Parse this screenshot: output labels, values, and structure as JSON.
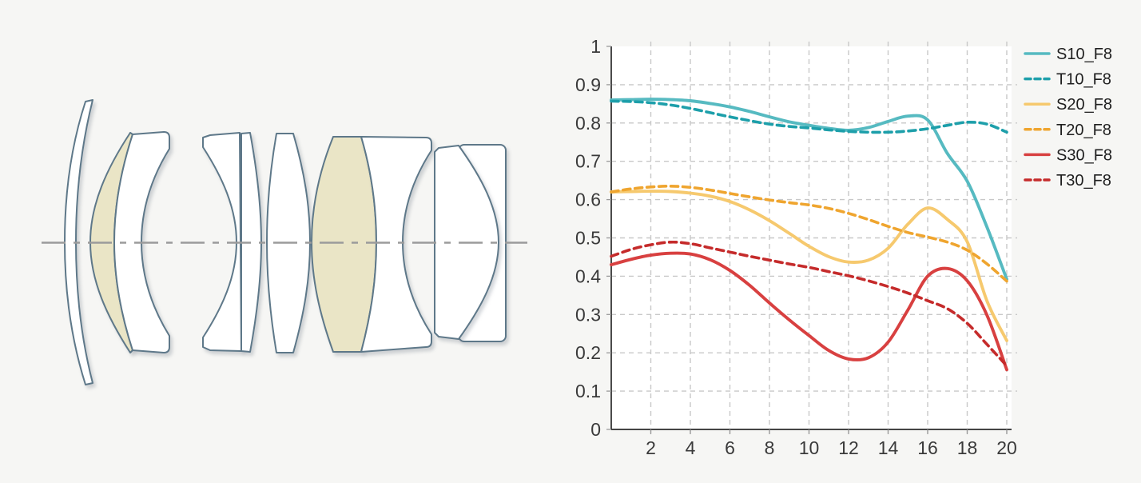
{
  "page": {
    "background": "#f6f6f4"
  },
  "lens_diagram": {
    "label": "lens-cross-section",
    "outline_color": "#5e7889",
    "element_fill": "#ffffff",
    "highlight_fill": "#eae5c6",
    "optical_axis_color": "#9b9b9b",
    "element_count": 9,
    "highlighted_elements": 2
  },
  "chart_data": {
    "type": "line",
    "title": "",
    "xlabel": "",
    "ylabel": "",
    "xlim": [
      0,
      20.25
    ],
    "ylim": [
      0,
      1
    ],
    "grid": true,
    "legend_position": "right-top",
    "x": [
      0,
      1,
      2,
      3,
      4,
      5,
      6,
      7,
      8,
      9,
      10,
      11,
      12,
      13,
      14,
      15,
      16,
      17,
      18,
      19,
      20
    ],
    "xticks": [
      "2",
      "4",
      "6",
      "8",
      "10",
      "12",
      "14",
      "16",
      "18",
      "20"
    ],
    "xtick_values": [
      2,
      4,
      6,
      8,
      10,
      12,
      14,
      16,
      18,
      20
    ],
    "yticks": [
      "0",
      "0.1",
      "0.2",
      "0.3",
      "0.4",
      "0.5",
      "0.6",
      "0.7",
      "0.8",
      "0.9",
      "1"
    ],
    "ytick_values": [
      0,
      0.1,
      0.2,
      0.3,
      0.4,
      0.5,
      0.6,
      0.7,
      0.8,
      0.9,
      1
    ],
    "series": [
      {
        "name": "S10_F8",
        "color": "#56bac1",
        "dash": false,
        "values": [
          0.86,
          0.861,
          0.862,
          0.861,
          0.858,
          0.851,
          0.842,
          0.83,
          0.816,
          0.803,
          0.794,
          0.786,
          0.781,
          0.788,
          0.804,
          0.818,
          0.808,
          0.72,
          0.648,
          0.528,
          0.392
        ]
      },
      {
        "name": "T10_F8",
        "color": "#1d9faa",
        "dash": true,
        "values": [
          0.857,
          0.856,
          0.853,
          0.847,
          0.838,
          0.827,
          0.816,
          0.806,
          0.797,
          0.791,
          0.787,
          0.782,
          0.778,
          0.776,
          0.776,
          0.779,
          0.785,
          0.794,
          0.802,
          0.797,
          0.776
        ]
      },
      {
        "name": "S20_F8",
        "color": "#f6c96e",
        "dash": false,
        "values": [
          0.62,
          0.621,
          0.622,
          0.621,
          0.617,
          0.609,
          0.595,
          0.573,
          0.545,
          0.512,
          0.478,
          0.451,
          0.437,
          0.442,
          0.473,
          0.536,
          0.578,
          0.548,
          0.49,
          0.335,
          0.232
        ]
      },
      {
        "name": "T20_F8",
        "color": "#efa52f",
        "dash": true,
        "values": [
          0.62,
          0.628,
          0.633,
          0.635,
          0.632,
          0.625,
          0.616,
          0.607,
          0.599,
          0.592,
          0.586,
          0.577,
          0.564,
          0.548,
          0.53,
          0.514,
          0.502,
          0.489,
          0.468,
          0.432,
          0.387
        ]
      },
      {
        "name": "S30_F8",
        "color": "#d84040",
        "dash": false,
        "values": [
          0.43,
          0.444,
          0.455,
          0.46,
          0.458,
          0.443,
          0.415,
          0.376,
          0.33,
          0.286,
          0.245,
          0.206,
          0.184,
          0.187,
          0.228,
          0.312,
          0.4,
          0.42,
          0.388,
          0.298,
          0.156
        ]
      },
      {
        "name": "T30_F8",
        "color": "#c52b2b",
        "dash": true,
        "values": [
          0.452,
          0.47,
          0.482,
          0.489,
          0.485,
          0.474,
          0.463,
          0.452,
          0.442,
          0.432,
          0.423,
          0.412,
          0.401,
          0.388,
          0.373,
          0.356,
          0.336,
          0.315,
          0.277,
          0.222,
          0.166
        ]
      }
    ]
  }
}
